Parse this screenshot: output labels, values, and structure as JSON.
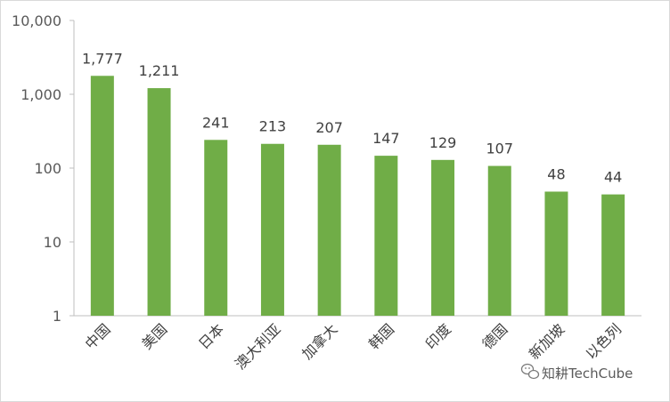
{
  "chart_data": {
    "type": "bar",
    "categories": [
      "中国",
      "美国",
      "日本",
      "澳大利亚",
      "加拿大",
      "韩国",
      "印度",
      "德国",
      "新加坡",
      "以色列"
    ],
    "values": [
      1777,
      1211,
      241,
      213,
      207,
      147,
      129,
      107,
      48,
      44
    ],
    "data_labels": [
      "1,777",
      "1,211",
      "241",
      "213",
      "207",
      "147",
      "129",
      "107",
      "48",
      "44"
    ],
    "y_scale": "log",
    "ylim": [
      1,
      10000
    ],
    "y_ticks": [
      1,
      10,
      100,
      1000,
      10000
    ],
    "y_tick_labels": [
      "1",
      "10",
      "100",
      "1,000",
      "10,000"
    ],
    "bar_color": "#70ad47",
    "grid": false,
    "legend": "none"
  },
  "watermark": {
    "text": "知耕TechCube",
    "icon": "wechat-chat-bubble-icon"
  }
}
